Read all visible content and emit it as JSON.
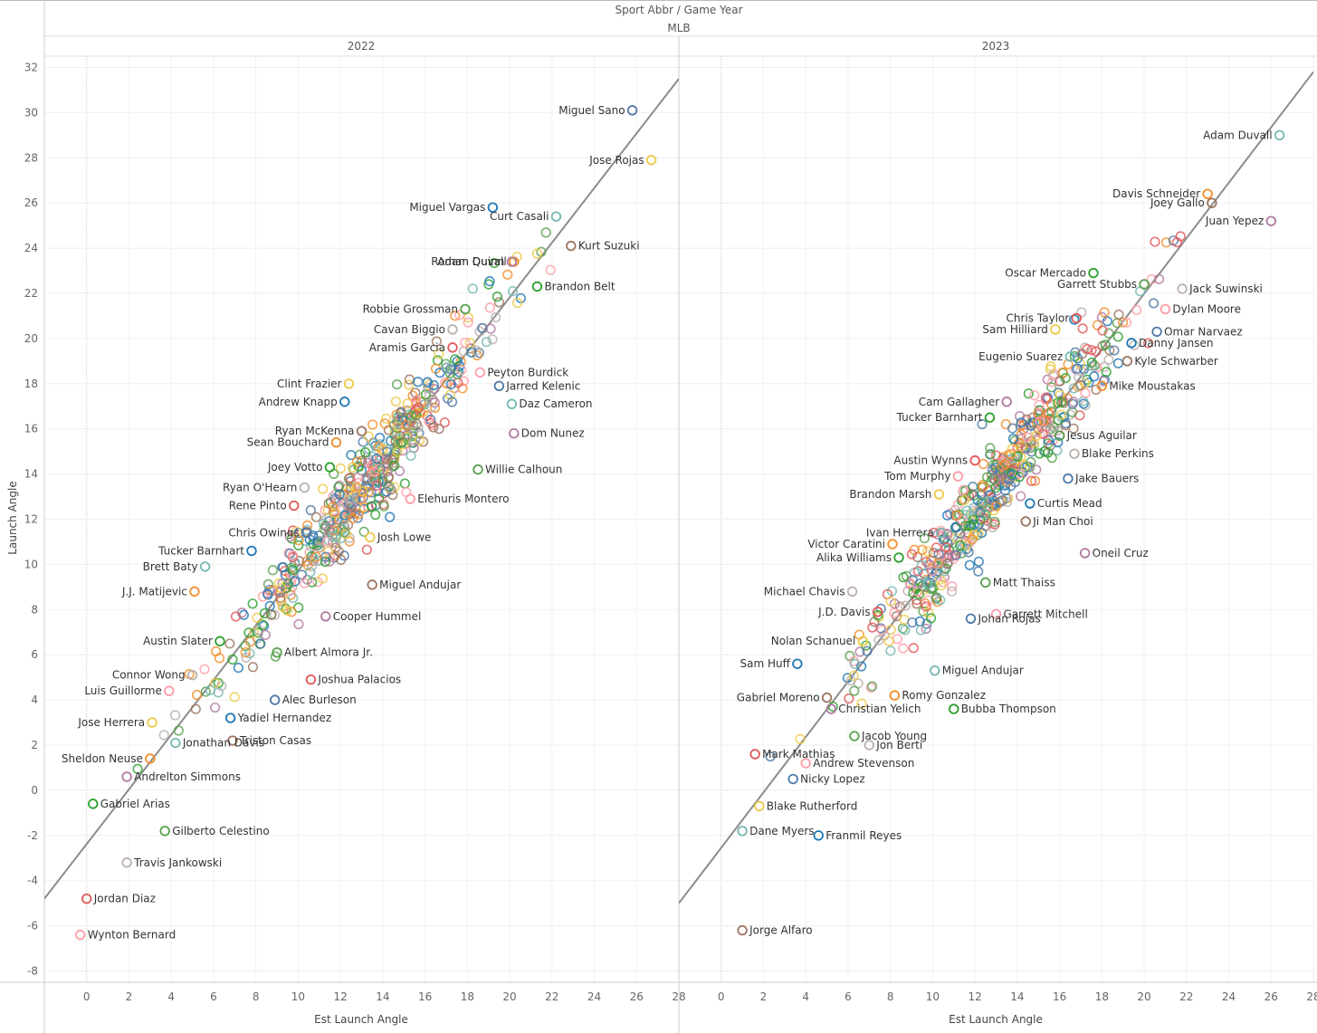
{
  "header": {
    "title": "Sport Abbr  /  Game Year",
    "sport": "MLB"
  },
  "chart_data": {
    "type": "scatter",
    "xlabel": "Est Launch Angle",
    "ylabel": "Launch Angle",
    "xlim": [
      -2,
      28
    ],
    "ylim": [
      -8.5,
      32.5
    ],
    "x_ticks": [
      0,
      2,
      4,
      6,
      8,
      10,
      12,
      14,
      16,
      18,
      20,
      22,
      24,
      26,
      28
    ],
    "y_ticks": [
      -8,
      -6,
      -4,
      -2,
      0,
      2,
      4,
      6,
      8,
      10,
      12,
      14,
      16,
      18,
      20,
      22,
      24,
      26,
      28,
      30,
      32
    ],
    "grid": true,
    "trend_line": true,
    "marker": "open-circle",
    "palette": [
      "#4e79a7",
      "#f28e2b",
      "#e15759",
      "#76b7b2",
      "#59a14f",
      "#edc948",
      "#b07aa1",
      "#ff9da7",
      "#9c755f",
      "#bab0ac",
      "#1f77b4",
      "#2ca02c"
    ],
    "panels": [
      {
        "year": "2022",
        "trend": [
          [
            -2,
            -4.8
          ],
          [
            28,
            31.5
          ]
        ],
        "labeled_points": [
          {
            "name": "Miguel Sano",
            "x": 25.8,
            "y": 30.1
          },
          {
            "name": "Jose Rojas",
            "x": 26.7,
            "y": 27.9
          },
          {
            "name": "Miguel Vargas",
            "x": 19.2,
            "y": 25.8
          },
          {
            "name": "Curt Casali",
            "x": 22.2,
            "y": 25.4
          },
          {
            "name": "Kurt Suzuki",
            "x": 22.9,
            "y": 24.1
          },
          {
            "name": "Adam Duvall",
            "x": 20.2,
            "y": 23.4
          },
          {
            "name": "Roman Quinn",
            "x": 20.1,
            "y": 23.4
          },
          {
            "name": "Brandon Belt",
            "x": 21.3,
            "y": 22.3
          },
          {
            "name": "Robbie Grossman",
            "x": 17.9,
            "y": 21.3
          },
          {
            "name": "Cavan Biggio",
            "x": 17.3,
            "y": 20.4
          },
          {
            "name": "Aramis Garcia",
            "x": 17.3,
            "y": 19.6
          },
          {
            "name": "Peyton Burdick",
            "x": 18.6,
            "y": 18.5
          },
          {
            "name": "Jarred Kelenic",
            "x": 19.5,
            "y": 17.9
          },
          {
            "name": "Clint Frazier",
            "x": 12.4,
            "y": 18.0
          },
          {
            "name": "Andrew Knapp",
            "x": 12.2,
            "y": 17.2
          },
          {
            "name": "Daz Cameron",
            "x": 20.1,
            "y": 17.1
          },
          {
            "name": "Ryan McKenna",
            "x": 13.0,
            "y": 15.9
          },
          {
            "name": "Sean Bouchard",
            "x": 11.8,
            "y": 15.4
          },
          {
            "name": "Dom Nunez",
            "x": 20.2,
            "y": 15.8
          },
          {
            "name": "Joey Votto",
            "x": 11.5,
            "y": 14.3
          },
          {
            "name": "Willie Calhoun",
            "x": 18.5,
            "y": 14.2
          },
          {
            "name": "Ryan O'Hearn",
            "x": 10.3,
            "y": 13.4
          },
          {
            "name": "Rene Pinto",
            "x": 9.8,
            "y": 12.6
          },
          {
            "name": "Elehuris Montero",
            "x": 15.3,
            "y": 12.9
          },
          {
            "name": "Chris Owings",
            "x": 10.4,
            "y": 11.4
          },
          {
            "name": "Josh Lowe",
            "x": 13.4,
            "y": 11.2
          },
          {
            "name": "Tucker Barnhart",
            "x": 7.8,
            "y": 10.6
          },
          {
            "name": "Brett Baty",
            "x": 5.6,
            "y": 9.9
          },
          {
            "name": "Miguel Andujar",
            "x": 13.5,
            "y": 9.1
          },
          {
            "name": "J.J. Matijevic",
            "x": 5.1,
            "y": 8.8
          },
          {
            "name": "Cooper Hummel",
            "x": 11.3,
            "y": 7.7
          },
          {
            "name": "Austin Slater",
            "x": 6.3,
            "y": 6.6
          },
          {
            "name": "Albert Almora Jr.",
            "x": 9.0,
            "y": 6.1
          },
          {
            "name": "Connor Wong",
            "x": 5.0,
            "y": 5.1
          },
          {
            "name": "Joshua Palacios",
            "x": 10.6,
            "y": 4.9
          },
          {
            "name": "Luis Guillorme",
            "x": 3.9,
            "y": 4.4
          },
          {
            "name": "Alec Burleson",
            "x": 8.9,
            "y": 4.0
          },
          {
            "name": "Jose Herrera",
            "x": 3.1,
            "y": 3.0
          },
          {
            "name": "Yadiel Hernandez",
            "x": 6.8,
            "y": 3.2
          },
          {
            "name": "Jonathan Davis",
            "x": 4.2,
            "y": 2.1
          },
          {
            "name": "Triston Casas",
            "x": 6.9,
            "y": 2.2
          },
          {
            "name": "Sheldon Neuse",
            "x": 3.0,
            "y": 1.4
          },
          {
            "name": "Andrelton Simmons",
            "x": 1.9,
            "y": 0.6
          },
          {
            "name": "Gabriel Arias",
            "x": 0.3,
            "y": -0.6
          },
          {
            "name": "Gilberto Celestino",
            "x": 3.7,
            "y": -1.8
          },
          {
            "name": "Travis Jankowski",
            "x": 1.9,
            "y": -3.2
          },
          {
            "name": "Jordan Diaz",
            "x": 0.0,
            "y": -4.8
          },
          {
            "name": "Wynton Bernard",
            "x": -0.3,
            "y": -6.4
          }
        ]
      },
      {
        "year": "2023",
        "trend": [
          [
            -2,
            -5.0
          ],
          [
            28,
            31.8
          ]
        ],
        "labeled_points": [
          {
            "name": "Adam Duvall",
            "x": 26.4,
            "y": 29.0
          },
          {
            "name": "Joey Gallo",
            "x": 23.2,
            "y": 26.0
          },
          {
            "name": "Davis Schneider",
            "x": 23.0,
            "y": 26.4
          },
          {
            "name": "Juan Yepez",
            "x": 26.0,
            "y": 25.2
          },
          {
            "name": "Oscar Mercado",
            "x": 17.6,
            "y": 22.9
          },
          {
            "name": "Garrett Stubbs",
            "x": 20.0,
            "y": 22.4
          },
          {
            "name": "Jack Suwinski",
            "x": 21.8,
            "y": 22.2
          },
          {
            "name": "Chris Taylor",
            "x": 16.8,
            "y": 20.9
          },
          {
            "name": "Dylan Moore",
            "x": 21.0,
            "y": 21.3
          },
          {
            "name": "Omar Narvaez",
            "x": 20.6,
            "y": 20.3
          },
          {
            "name": "Sam Hilliard",
            "x": 15.8,
            "y": 20.4
          },
          {
            "name": "Danny Jansen",
            "x": 19.4,
            "y": 19.8
          },
          {
            "name": "Eugenio Suarez",
            "x": 16.5,
            "y": 19.2
          },
          {
            "name": "Kyle Schwarber",
            "x": 19.2,
            "y": 19.0
          },
          {
            "name": "Mike Moustakas",
            "x": 18.0,
            "y": 17.9
          },
          {
            "name": "Cam Gallagher",
            "x": 13.5,
            "y": 17.2
          },
          {
            "name": "Tucker Barnhart",
            "x": 12.7,
            "y": 16.5
          },
          {
            "name": "Jesus Aguilar",
            "x": 16.0,
            "y": 15.7
          },
          {
            "name": "Blake Perkins",
            "x": 16.7,
            "y": 14.9
          },
          {
            "name": "Austin Wynns",
            "x": 12.0,
            "y": 14.6
          },
          {
            "name": "Tom Murphy",
            "x": 11.2,
            "y": 13.9
          },
          {
            "name": "Jake Bauers",
            "x": 16.4,
            "y": 13.8
          },
          {
            "name": "Brandon Marsh",
            "x": 10.3,
            "y": 13.1
          },
          {
            "name": "Curtis Mead",
            "x": 14.6,
            "y": 12.7
          },
          {
            "name": "Ivan Herrera",
            "x": 10.4,
            "y": 11.4
          },
          {
            "name": "Ji Man Choi",
            "x": 14.4,
            "y": 11.9
          },
          {
            "name": "Victor Caratini",
            "x": 8.1,
            "y": 10.9
          },
          {
            "name": "Oneil Cruz",
            "x": 17.2,
            "y": 10.5
          },
          {
            "name": "Alika Williams",
            "x": 8.4,
            "y": 10.3
          },
          {
            "name": "Matt Thaiss",
            "x": 12.5,
            "y": 9.2
          },
          {
            "name": "Michael Chavis",
            "x": 6.2,
            "y": 8.8
          },
          {
            "name": "J.D. Davis",
            "x": 7.4,
            "y": 7.9
          },
          {
            "name": "Garrett Mitchell",
            "x": 13.0,
            "y": 7.8
          },
          {
            "name": "Johan Rojas",
            "x": 11.8,
            "y": 7.6
          },
          {
            "name": "Nolan Schanuel",
            "x": 6.7,
            "y": 6.6
          },
          {
            "name": "Sam Huff",
            "x": 3.6,
            "y": 5.6
          },
          {
            "name": "Miguel Andujar",
            "x": 10.1,
            "y": 5.3
          },
          {
            "name": "Gabriel Moreno",
            "x": 5.0,
            "y": 4.1
          },
          {
            "name": "Romy Gonzalez",
            "x": 8.2,
            "y": 4.2
          },
          {
            "name": "Christian Yelich",
            "x": 5.2,
            "y": 3.6
          },
          {
            "name": "Bubba Thompson",
            "x": 11.0,
            "y": 3.6
          },
          {
            "name": "Jacob Young",
            "x": 6.3,
            "y": 2.4
          },
          {
            "name": "Jon Berti",
            "x": 7.0,
            "y": 2.0
          },
          {
            "name": "Mark Mathias",
            "x": 1.6,
            "y": 1.6
          },
          {
            "name": "Andrew Stevenson",
            "x": 4.0,
            "y": 1.2
          },
          {
            "name": "Nicky Lopez",
            "x": 3.4,
            "y": 0.5
          },
          {
            "name": "Blake Rutherford",
            "x": 1.8,
            "y": -0.7
          },
          {
            "name": "Franmil Reyes",
            "x": 4.6,
            "y": -2.0
          },
          {
            "name": "Dane Myers",
            "x": 1.0,
            "y": -1.8
          },
          {
            "name": "Jorge Alfaro",
            "x": 1.0,
            "y": -6.2
          }
        ]
      }
    ]
  }
}
